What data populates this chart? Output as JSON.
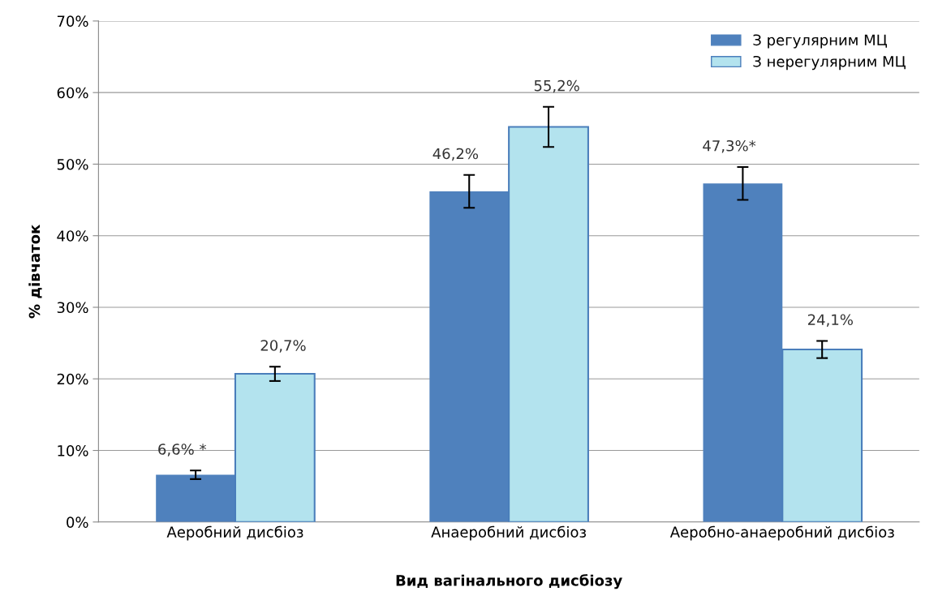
{
  "chart_data": {
    "type": "bar",
    "xlabel": "Вид вагінального дисбіозу",
    "ylabel": "% дівчаток",
    "categories": [
      "Аеробний дисбіоз",
      "Анаеробний дисбіоз",
      "Аеробно-анаеробний дисбіоз"
    ],
    "series": [
      {
        "name": "З регулярним МЦ",
        "color": "#4f81bd",
        "values": [
          6.6,
          46.2,
          47.3
        ],
        "errors": [
          0.6,
          2.3,
          2.3
        ],
        "value_labels": [
          "6,6% *",
          "46,2%",
          "47,3%*"
        ]
      },
      {
        "name": "З нерегулярним МЦ",
        "color": "#b3e3ee",
        "values": [
          20.7,
          55.2,
          24.1
        ],
        "errors": [
          1.0,
          2.8,
          1.2
        ],
        "value_labels": [
          "20,7%",
          "55,2%",
          "24,1%"
        ]
      }
    ],
    "ylim": [
      0,
      70
    ],
    "yticks": [
      {
        "value": 0,
        "label": "0%"
      },
      {
        "value": 10,
        "label": "10%"
      },
      {
        "value": 20,
        "label": "20%"
      },
      {
        "value": 30,
        "label": "30%"
      },
      {
        "value": 40,
        "label": "40%"
      },
      {
        "value": 50,
        "label": "50%"
      },
      {
        "value": 60,
        "label": "60%"
      },
      {
        "value": 70,
        "label": "70%"
      }
    ],
    "grid": "y",
    "legend": "top right"
  }
}
